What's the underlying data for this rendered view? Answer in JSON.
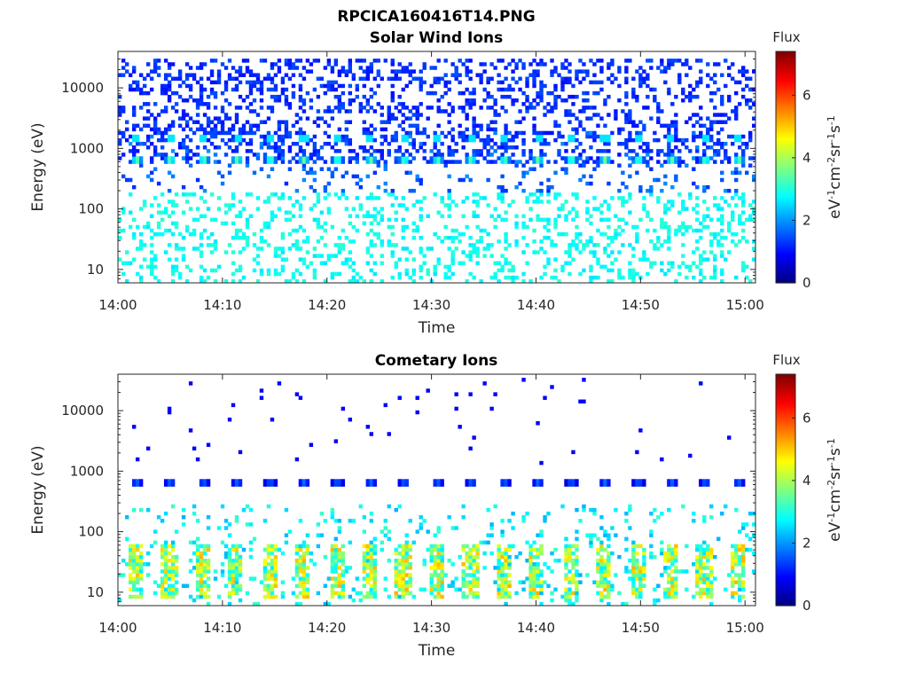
{
  "figure": {
    "title_line1": "RPCICA160416T14.PNG"
  },
  "colormap": "jet",
  "chart_data": [
    {
      "type": "heatmap",
      "title": "Solar Wind Ions",
      "xlabel": "Time",
      "ylabel": "Energy (eV)",
      "x_ticks": [
        "14:00",
        "14:10",
        "14:20",
        "14:30",
        "14:40",
        "14:50",
        "15:00"
      ],
      "x_range_minutes": [
        0,
        61
      ],
      "y_scale": "log",
      "y_range": [
        6,
        40000
      ],
      "y_ticks": [
        {
          "value": 10,
          "label": "10"
        },
        {
          "value": 100,
          "label": "100"
        },
        {
          "value": 1000,
          "label": "1000"
        },
        {
          "value": 10000,
          "label": "10000"
        }
      ],
      "colorbar": {
        "title": "Flux",
        "label": "eV-1cm-2sr-1s-1",
        "range": [
          0,
          7.4
        ],
        "ticks": [
          0,
          2,
          4,
          6
        ]
      },
      "features": {
        "main_beam": {
          "center_energy_eV": 650,
          "peak_flux": 4.2,
          "period_minutes": 3.2,
          "first_time_minutes": 5.0
        },
        "alpha_beam": {
          "center_energy_eV": 1500,
          "peak_flux": 2.6
        },
        "background_high_energy": {
          "range_eV": [
            2000,
            30000
          ],
          "flux": 1.0
        },
        "background_low_energy": {
          "range_eV": [
            6,
            200
          ],
          "flux": 2.6
        }
      }
    },
    {
      "type": "heatmap",
      "title": "Cometary Ions",
      "xlabel": "Time",
      "ylabel": "Energy (eV)",
      "x_ticks": [
        "14:00",
        "14:10",
        "14:20",
        "14:30",
        "14:40",
        "14:50",
        "15:00"
      ],
      "x_range_minutes": [
        0,
        61
      ],
      "y_scale": "log",
      "y_range": [
        6,
        40000
      ],
      "y_ticks": [
        {
          "value": 10,
          "label": "10"
        },
        {
          "value": 100,
          "label": "100"
        },
        {
          "value": 1000,
          "label": "1000"
        },
        {
          "value": 10000,
          "label": "10000"
        }
      ],
      "colorbar": {
        "title": "Flux",
        "label": "eV-1cm-2sr-1s-1",
        "range": [
          0,
          7.4
        ],
        "ticks": [
          0,
          2,
          4,
          6
        ]
      },
      "features": {
        "main_beam": {
          "center_energy_eV": 650,
          "peak_flux": 2.0,
          "period_minutes": 3.2,
          "first_time_minutes": 1.8
        },
        "low_energy_bursts": {
          "range_eV": [
            8,
            60
          ],
          "peak_flux": 5.2,
          "period_minutes": 3.2
        },
        "sparse_points": {
          "range_eV": [
            1000,
            35000
          ],
          "flux": 0.9
        }
      }
    }
  ]
}
